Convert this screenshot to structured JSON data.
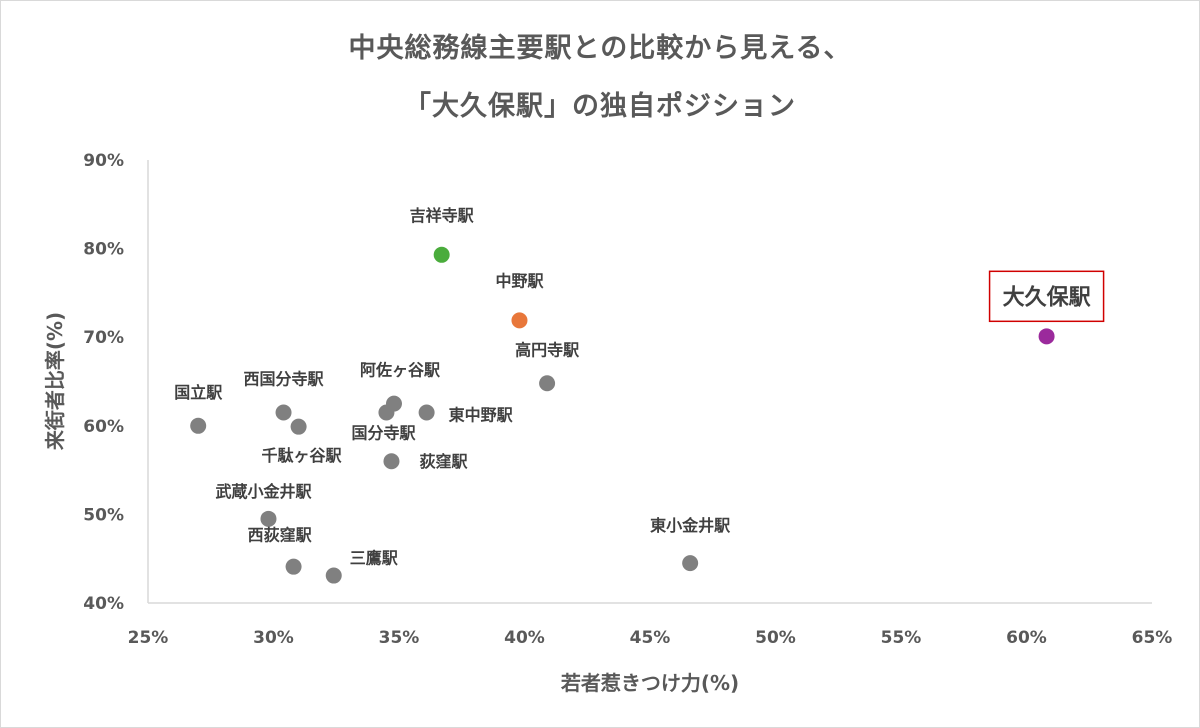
{
  "chart_data": {
    "type": "scatter",
    "title_line1": "中央総務線主要駅との比較から見える、",
    "title_line2": "「大久保駅」の独自ポジション",
    "xlabel": "若者惹きつけ力(%)",
    "ylabel": "来街者比率(%)",
    "xlim": [
      25,
      65
    ],
    "ylim": [
      40,
      90
    ],
    "x_ticks": [
      "25%",
      "30%",
      "35%",
      "40%",
      "45%",
      "50%",
      "55%",
      "60%",
      "65%"
    ],
    "y_ticks": [
      "40%",
      "50%",
      "60%",
      "70%",
      "80%",
      "90%"
    ],
    "grid": false,
    "colors": {
      "default": "#808080",
      "green": "#4aac3c",
      "orange": "#e8773a",
      "purple": "#9b2a9c",
      "highlight_border": "#d00000"
    },
    "points": [
      {
        "name": "吉祥寺駅",
        "x": 36.7,
        "y": 79.3,
        "color": "#4aac3c"
      },
      {
        "name": "中野駅",
        "x": 39.8,
        "y": 71.9,
        "color": "#e8773a"
      },
      {
        "name": "大久保駅",
        "x": 60.8,
        "y": 70.1,
        "color": "#9b2a9c",
        "highlight": true
      },
      {
        "name": "高円寺駅",
        "x": 40.9,
        "y": 64.8,
        "color": "#808080"
      },
      {
        "name": "国立駅",
        "x": 27.0,
        "y": 60.0,
        "color": "#808080"
      },
      {
        "name": "西国分寺駅",
        "x": 30.4,
        "y": 61.5,
        "color": "#808080"
      },
      {
        "name": "",
        "x": 31.0,
        "y": 59.9,
        "color": "#808080"
      },
      {
        "name": "阿佐ヶ谷駅",
        "x": 34.8,
        "y": 62.5,
        "color": "#808080"
      },
      {
        "name": "国分寺駅",
        "x": 34.5,
        "y": 61.5,
        "color": "#808080"
      },
      {
        "name": "東中野駅",
        "x": 36.1,
        "y": 61.5,
        "color": "#808080"
      },
      {
        "name": "千駄ヶ谷駅",
        "x": 34.7,
        "y": 56.0,
        "color": "#808080"
      },
      {
        "name": "荻窪駅",
        "x": 34.7,
        "y": 56.0,
        "color": "#808080",
        "hidden_dot": true
      },
      {
        "name": "武蔵小金井駅",
        "x": 29.8,
        "y": 49.5,
        "color": "#808080"
      },
      {
        "name": "西荻窪駅",
        "x": 30.8,
        "y": 44.1,
        "color": "#808080"
      },
      {
        "name": "三鷹駅",
        "x": 32.4,
        "y": 43.1,
        "color": "#808080"
      },
      {
        "name": "東小金井駅",
        "x": 46.6,
        "y": 44.5,
        "color": "#808080"
      }
    ]
  }
}
